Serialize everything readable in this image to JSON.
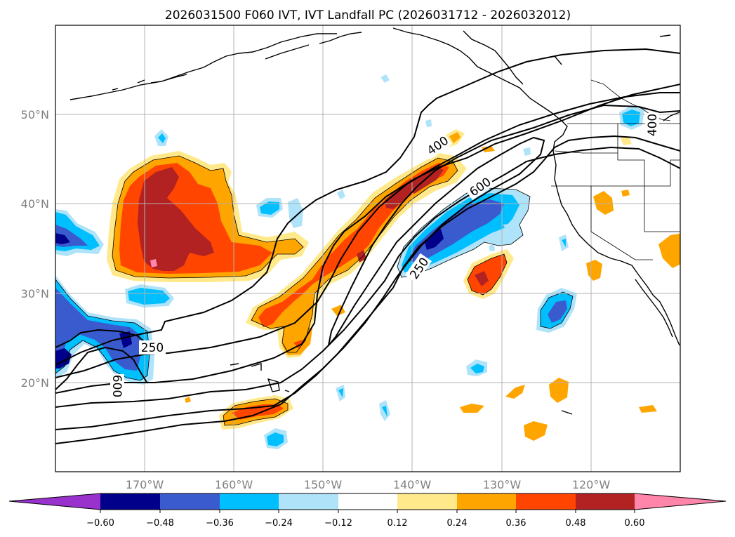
{
  "map": {
    "title": "2026031500 F060 IVT, IVT Landfall PC (2026031712 - 2026032012)",
    "lon_labels": [
      "170°W",
      "160°W",
      "150°W",
      "140°W",
      "130°W",
      "120°W"
    ],
    "lat_labels": [
      "50°N",
      "40°N",
      "30°N",
      "20°N"
    ],
    "contour_labels": [
      "400",
      "600",
      "250",
      "250",
      "600",
      "400"
    ],
    "gridlines": true,
    "projection": "plate-carree",
    "extent_lon": [
      -180,
      -110
    ],
    "extent_lat": [
      10,
      60
    ]
  },
  "colorbar": {
    "ticks": [
      "−0.60",
      "−0.48",
      "−0.36",
      "−0.24",
      "−0.12",
      "0.12",
      "0.24",
      "0.36",
      "0.48",
      "0.60"
    ],
    "colors": [
      "#9932cc",
      "#00008b",
      "#3a5bcd",
      "#00bfff",
      "#afe3fa",
      "#ffffff",
      "#ffe98a",
      "#ffa500",
      "#ff4500",
      "#b22222",
      "#ff85aa"
    ]
  },
  "colors": {
    "pc_m060": "#00008b",
    "pc_m048": "#3a5bcd",
    "pc_m036": "#00bfff",
    "pc_m024": "#afe3fa",
    "pc_012": "#ffe98a",
    "pc_024": "#ffa500",
    "pc_036": "#ff4500",
    "pc_048": "#b22222",
    "pc_060": "#ff85aa"
  }
}
